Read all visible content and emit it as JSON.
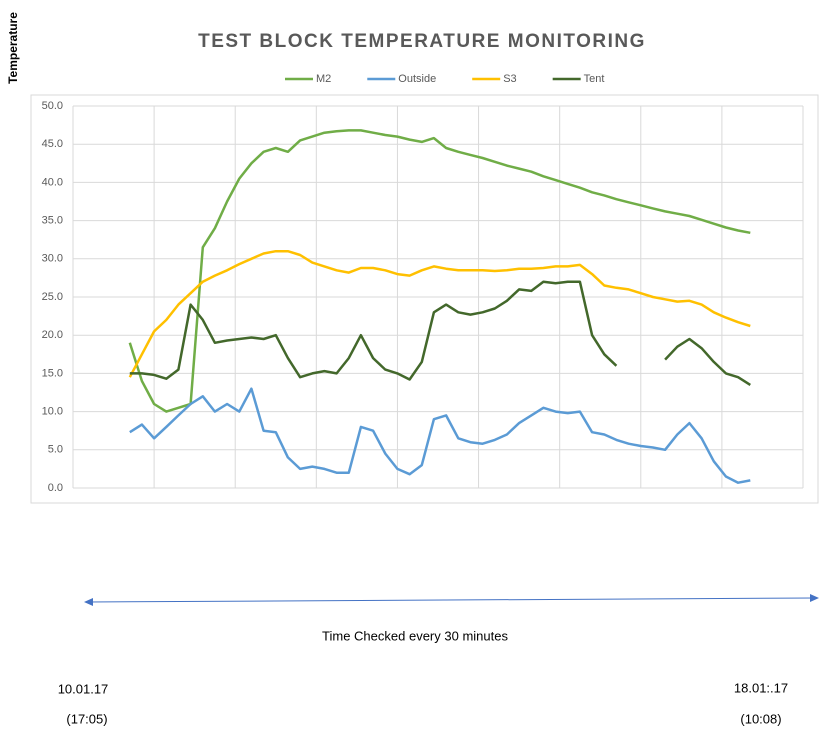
{
  "chart_data": {
    "type": "line",
    "title": "TEST BLOCK TEMPERATURE MONITORING",
    "y_label": "Temperature",
    "x_label": "Time Checked every 30 minutes",
    "annotations": [
      "10.01.17",
      "(17:05)",
      "18.01:.17",
      "(10:08)"
    ],
    "xlim": [
      0,
      9
    ],
    "xticks": [
      0,
      1,
      2,
      3,
      4,
      5,
      6,
      7,
      8,
      9
    ],
    "ylim": [
      0,
      50
    ],
    "yticks": [
      {
        "value": 0,
        "label": "0.0"
      },
      {
        "value": 5,
        "label": "5.0"
      },
      {
        "value": 10,
        "label": "10.0"
      },
      {
        "value": 15,
        "label": "15.0"
      },
      {
        "value": 20,
        "label": "20.0"
      },
      {
        "value": 25,
        "label": "25.0"
      },
      {
        "value": 30,
        "label": "30.0"
      },
      {
        "value": 35,
        "label": "35.0"
      },
      {
        "value": 40,
        "label": "40.0"
      },
      {
        "value": 45,
        "label": "45.0"
      },
      {
        "value": 50,
        "label": "50.0"
      }
    ],
    "grid": true,
    "legend": "top",
    "x": [
      0.7,
      0.85,
      1.0,
      1.15,
      1.3,
      1.45,
      1.6,
      1.75,
      1.9,
      2.05,
      2.2,
      2.35,
      2.5,
      2.65,
      2.8,
      2.95,
      3.1,
      3.25,
      3.4,
      3.55,
      3.7,
      3.85,
      4.0,
      4.15,
      4.3,
      4.45,
      4.6,
      4.75,
      4.9,
      5.05,
      5.2,
      5.35,
      5.5,
      5.65,
      5.8,
      5.95,
      6.1,
      6.25,
      6.4,
      6.55,
      6.7,
      6.85,
      7.0,
      7.15,
      7.3,
      7.45,
      7.6,
      7.75,
      7.9,
      8.05,
      8.2,
      8.35
    ],
    "series": [
      {
        "name": "M2",
        "color": "#70ad47",
        "values": [
          19,
          14,
          11,
          10,
          10.5,
          11,
          31.5,
          34,
          37.5,
          40.5,
          42.5,
          44,
          44.5,
          44,
          45.5,
          46,
          46.5,
          46.7,
          46.8,
          46.8,
          46.5,
          46.2,
          46,
          45.6,
          45.3,
          45.8,
          44.5,
          44,
          43.6,
          43.2,
          42.7,
          42.2,
          41.8,
          41.4,
          40.8,
          40.3,
          39.8,
          39.3,
          38.7,
          38.3,
          37.8,
          37.4,
          37,
          36.6,
          36.2,
          35.9,
          35.6,
          35.1,
          34.6,
          34.1,
          33.7,
          33.4
        ]
      },
      {
        "name": "Outside",
        "color": "#5b9bd5",
        "values": [
          7.3,
          8.3,
          6.5,
          8,
          9.5,
          11,
          12,
          10,
          11,
          10,
          13,
          7.5,
          7.3,
          4,
          2.5,
          2.8,
          2.5,
          2,
          2,
          8,
          7.5,
          4.5,
          2.5,
          1.8,
          3,
          9,
          9.5,
          6.5,
          6,
          5.8,
          6.3,
          7,
          8.5,
          9.5,
          10.5,
          10,
          9.8,
          10,
          7.3,
          7,
          6.3,
          5.8,
          5.5,
          5.3,
          5,
          7,
          8.5,
          6.5,
          3.5,
          1.5,
          0.7,
          1
        ]
      },
      {
        "name": "S3",
        "color": "#ffc000",
        "values": [
          14.5,
          17.5,
          20.5,
          22,
          24,
          25.5,
          27,
          27.8,
          28.5,
          29.3,
          30,
          30.7,
          31,
          31,
          30.5,
          29.5,
          29,
          28.5,
          28.2,
          28.8,
          28.8,
          28.5,
          28,
          27.8,
          28.5,
          29,
          28.7,
          28.5,
          28.5,
          28.5,
          28.4,
          28.5,
          28.7,
          28.7,
          28.8,
          29,
          29,
          29.2,
          28,
          26.5,
          26.2,
          26,
          25.5,
          25,
          24.7,
          24.4,
          24.5,
          24,
          23,
          22.3,
          21.7,
          21.2
        ]
      },
      {
        "name": "Tent",
        "color": "#43682b",
        "values": [
          15,
          15,
          14.8,
          14.3,
          15.5,
          24,
          22,
          19,
          19.3,
          19.5,
          19.7,
          19.5,
          20,
          17,
          14.5,
          15,
          15.3,
          15,
          17,
          20,
          17,
          15.5,
          15,
          14.2,
          16.5,
          23,
          24,
          23,
          22.7,
          23,
          23.5,
          24.5,
          26,
          25.8,
          27,
          26.8,
          27,
          27,
          20,
          17.5,
          16,
          null,
          null,
          null,
          16.8,
          18.5,
          19.5,
          18.3,
          16.5,
          15,
          14.5,
          13.5
        ]
      }
    ]
  }
}
